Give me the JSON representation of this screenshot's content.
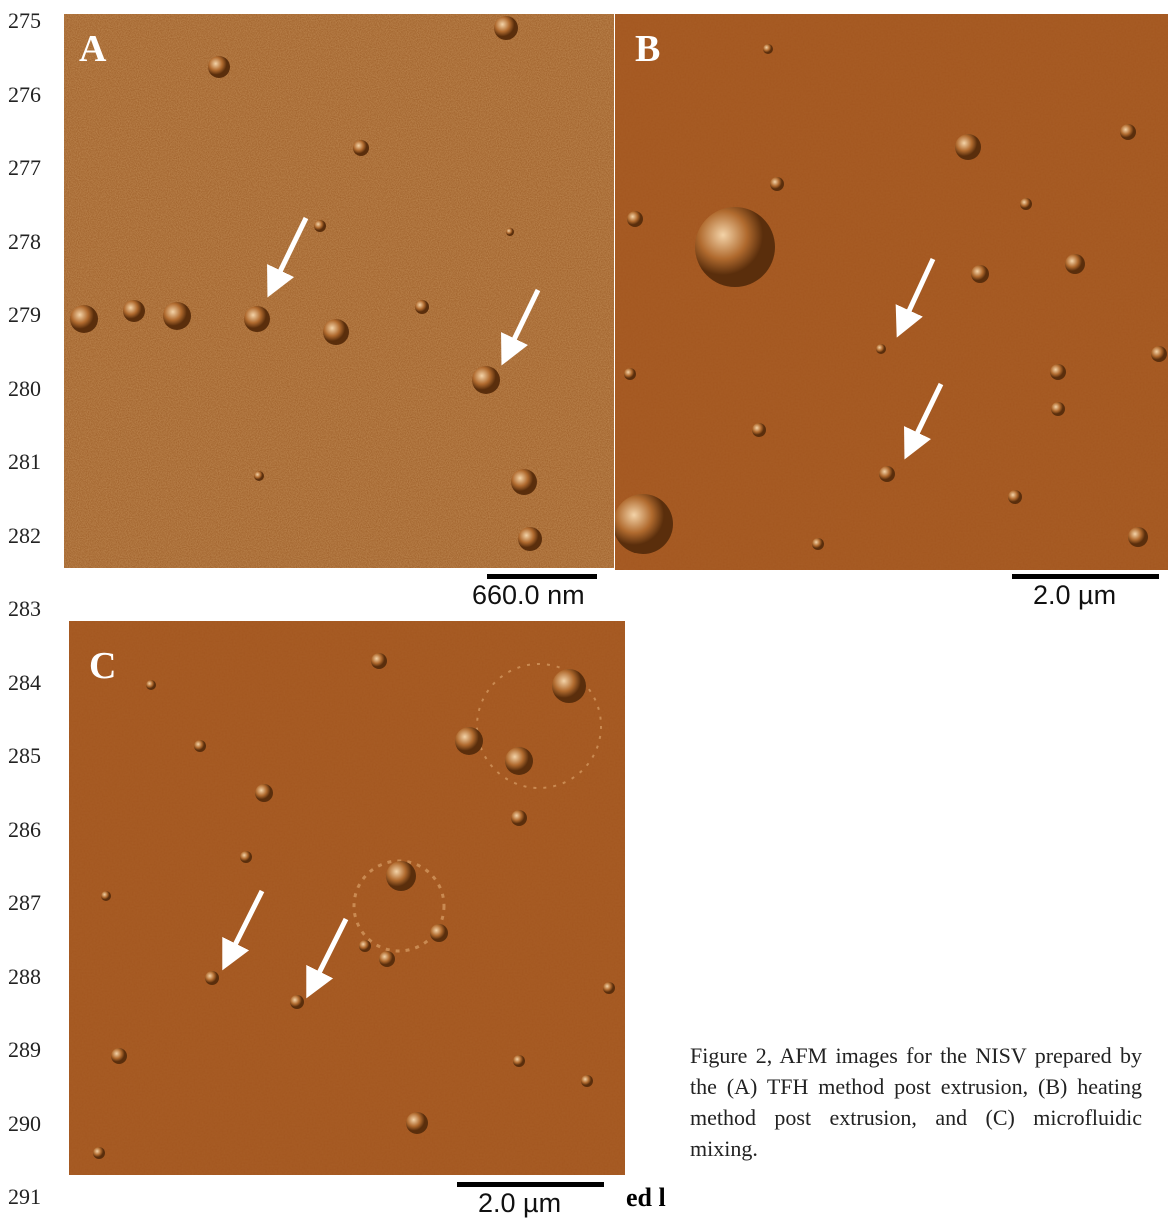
{
  "line_numbers": [
    "275",
    "276",
    "277",
    "278",
    "279",
    "280",
    "281",
    "282",
    "283",
    "284",
    "285",
    "286",
    "287",
    "288",
    "289",
    "290",
    "291"
  ],
  "panels": [
    {
      "label": "A",
      "scale_bar": "660.0 nm"
    },
    {
      "label": "B",
      "scale_bar": "2.0 µm"
    },
    {
      "label": "C",
      "scale_bar": "2.0 µm"
    }
  ],
  "fragment": "ed l",
  "caption": "Figure 2, AFM images for the NISV prepared by the (A) TFH method post extrusion, (B) heating method post extrusion, and (C) microfluidic mixing."
}
